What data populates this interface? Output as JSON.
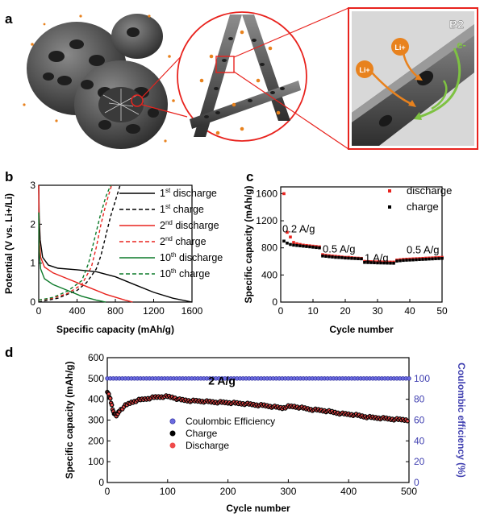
{
  "panels": {
    "a": "a",
    "b": "b",
    "c": "c",
    "d": "d"
  },
  "illustration": {
    "zoom_label": "B2",
    "li_label": "Li+",
    "electron_label": "e-"
  },
  "chart_data": [
    {
      "id": "b",
      "type": "line",
      "xlabel": "Specific capacity (mAh/g)",
      "ylabel": "Potential (V vs. Li+/Li)",
      "xlim": [
        0,
        1600
      ],
      "ylim": [
        0,
        3
      ],
      "xticks": [
        "0",
        "400",
        "800",
        "1200",
        "1600"
      ],
      "yticks": [
        "0",
        "1",
        "2",
        "3"
      ],
      "legend": [
        {
          "base": "1",
          "sup": "st",
          "rest": " discharge",
          "color": "#000000",
          "dash": false
        },
        {
          "base": "1",
          "sup": "st",
          "rest": " charge",
          "color": "#000000",
          "dash": true
        },
        {
          "base": "2",
          "sup": "nd",
          "rest": " discharge",
          "color": "#e8231e",
          "dash": false
        },
        {
          "base": "2",
          "sup": "nd",
          "rest": " charge",
          "color": "#e8231e",
          "dash": true
        },
        {
          "base": "10",
          "sup": "th",
          "rest": " discharge",
          "color": "#0d7a2a",
          "dash": false
        },
        {
          "base": "10",
          "sup": "th",
          "rest": " charge",
          "color": "#0d7a2a",
          "dash": true
        }
      ],
      "series": [
        {
          "color": "#000000",
          "dash": false,
          "points": [
            [
              0,
              3
            ],
            [
              5,
              2.2
            ],
            [
              15,
              1.6
            ],
            [
              40,
              1.15
            ],
            [
              100,
              0.95
            ],
            [
              200,
              0.87
            ],
            [
              400,
              0.83
            ],
            [
              600,
              0.78
            ],
            [
              800,
              0.65
            ],
            [
              1000,
              0.45
            ],
            [
              1200,
              0.25
            ],
            [
              1400,
              0.1
            ],
            [
              1600,
              0
            ]
          ]
        },
        {
          "color": "#000000",
          "dash": true,
          "points": [
            [
              0,
              0
            ],
            [
              100,
              0.05
            ],
            [
              200,
              0.1
            ],
            [
              300,
              0.2
            ],
            [
              400,
              0.3
            ],
            [
              500,
              0.5
            ],
            [
              600,
              0.85
            ],
            [
              650,
              1.2
            ],
            [
              700,
              1.7
            ],
            [
              750,
              2.2
            ],
            [
              800,
              2.6
            ],
            [
              850,
              3
            ]
          ]
        },
        {
          "color": "#e8231e",
          "dash": false,
          "points": [
            [
              0,
              3
            ],
            [
              5,
              1.6
            ],
            [
              20,
              1.15
            ],
            [
              60,
              0.9
            ],
            [
              150,
              0.75
            ],
            [
              300,
              0.6
            ],
            [
              500,
              0.4
            ],
            [
              700,
              0.2
            ],
            [
              900,
              0.05
            ],
            [
              980,
              0
            ]
          ]
        },
        {
          "color": "#e8231e",
          "dash": true,
          "points": [
            [
              0,
              0.05
            ],
            [
              150,
              0.1
            ],
            [
              300,
              0.22
            ],
            [
              450,
              0.45
            ],
            [
              550,
              0.9
            ],
            [
              600,
              1.4
            ],
            [
              650,
              2
            ],
            [
              700,
              2.5
            ],
            [
              760,
              3
            ]
          ]
        },
        {
          "color": "#0d7a2a",
          "dash": false,
          "points": [
            [
              0,
              2.3
            ],
            [
              5,
              1.3
            ],
            [
              20,
              0.85
            ],
            [
              60,
              0.6
            ],
            [
              150,
              0.45
            ],
            [
              300,
              0.3
            ],
            [
              450,
              0.15
            ],
            [
              600,
              0.05
            ],
            [
              700,
              0
            ]
          ]
        },
        {
          "color": "#0d7a2a",
          "dash": true,
          "points": [
            [
              0,
              0.05
            ],
            [
              150,
              0.12
            ],
            [
              300,
              0.28
            ],
            [
              450,
              0.55
            ],
            [
              520,
              1
            ],
            [
              580,
              1.6
            ],
            [
              640,
              2.2
            ],
            [
              700,
              2.7
            ],
            [
              750,
              3
            ]
          ]
        }
      ]
    },
    {
      "id": "c",
      "type": "scatter",
      "xlabel": "Cycle number",
      "ylabel": "Specific capacity (mAh/g)",
      "xlim": [
        0,
        50
      ],
      "ylim": [
        0,
        1700
      ],
      "xticks": [
        "0",
        "10",
        "20",
        "30",
        "40",
        "50"
      ],
      "yticks": [
        "0",
        "400",
        "800",
        "1200",
        "1600"
      ],
      "legend": [
        {
          "name": "discharge",
          "color": "#e8231e"
        },
        {
          "name": "charge",
          "color": "#000000"
        }
      ],
      "annotations": [
        {
          "text": "0.2 A/g",
          "x": 0.5,
          "y": 1030
        },
        {
          "text": "0.5 A/g",
          "x": 13,
          "y": 730
        },
        {
          "text": "1 A/g",
          "x": 26,
          "y": 600
        },
        {
          "text": "0.5 A/g",
          "x": 39,
          "y": 720
        }
      ],
      "discharge": [
        1600,
        1030,
        960,
        880,
        860,
        850,
        840,
        835,
        830,
        825,
        820,
        815,
        700,
        690,
        685,
        680,
        675,
        670,
        665,
        660,
        660,
        655,
        650,
        648,
        645,
        600,
        598,
        596,
        595,
        594,
        593,
        592,
        591,
        590,
        590,
        620,
        625,
        630,
        633,
        635,
        638,
        640,
        642,
        645,
        648,
        650,
        652,
        655,
        658,
        660
      ],
      "charge": [
        900,
        870,
        850,
        840,
        835,
        830,
        825,
        820,
        815,
        810,
        805,
        800,
        680,
        675,
        670,
        665,
        660,
        658,
        655,
        650,
        648,
        645,
        643,
        640,
        638,
        585,
        583,
        582,
        580,
        578,
        577,
        576,
        575,
        574,
        573,
        605,
        610,
        615,
        618,
        620,
        622,
        625,
        628,
        630,
        632,
        635,
        637,
        640,
        642,
        645
      ]
    },
    {
      "id": "d",
      "type": "scatter",
      "xlabel": "Cycle number",
      "ylabel": "Specific capacity (mAh/g)",
      "y2label": "Coulombic efficiency (%)",
      "annotation": "2 A/g",
      "xlim": [
        0,
        500
      ],
      "ylim": [
        0,
        600
      ],
      "y2lim": [
        0,
        120
      ],
      "xticks": [
        "0",
        "100",
        "200",
        "300",
        "400",
        "500"
      ],
      "yticks": [
        "0",
        "100",
        "200",
        "300",
        "400",
        "500",
        "600"
      ],
      "y2ticks": [
        "0",
        "20",
        "40",
        "60",
        "80",
        "100"
      ],
      "legend": [
        {
          "name": "Coulombic Efficiency",
          "color": "#3f3fb0"
        },
        {
          "name": "Charge",
          "color": "#000000"
        },
        {
          "name": "Discharge",
          "color": "#e8231e"
        }
      ],
      "capacity_points": [
        [
          0,
          440
        ],
        [
          5,
          400
        ],
        [
          10,
          340
        ],
        [
          15,
          320
        ],
        [
          20,
          345
        ],
        [
          30,
          370
        ],
        [
          40,
          385
        ],
        [
          50,
          395
        ],
        [
          60,
          400
        ],
        [
          70,
          405
        ],
        [
          80,
          410
        ],
        [
          90,
          412
        ],
        [
          100,
          413
        ],
        [
          110,
          408
        ],
        [
          120,
          398
        ],
        [
          130,
          395
        ],
        [
          140,
          392
        ],
        [
          150,
          392
        ],
        [
          160,
          390
        ],
        [
          170,
          388
        ],
        [
          180,
          386
        ],
        [
          190,
          385
        ],
        [
          200,
          384
        ],
        [
          210,
          382
        ],
        [
          220,
          380
        ],
        [
          230,
          378
        ],
        [
          240,
          375
        ],
        [
          250,
          372
        ],
        [
          260,
          370
        ],
        [
          270,
          366
        ],
        [
          280,
          362
        ],
        [
          290,
          358
        ],
        [
          300,
          365
        ],
        [
          310,
          365
        ],
        [
          320,
          360
        ],
        [
          330,
          355
        ],
        [
          340,
          350
        ],
        [
          350,
          348
        ],
        [
          360,
          345
        ],
        [
          370,
          340
        ],
        [
          380,
          335
        ],
        [
          390,
          330
        ],
        [
          400,
          328
        ],
        [
          410,
          325
        ],
        [
          420,
          320
        ],
        [
          430,
          315
        ],
        [
          440,
          312
        ],
        [
          450,
          310
        ],
        [
          460,
          308
        ],
        [
          470,
          305
        ],
        [
          480,
          303
        ],
        [
          490,
          302
        ],
        [
          500,
          300
        ]
      ],
      "ce_value": 100
    }
  ]
}
